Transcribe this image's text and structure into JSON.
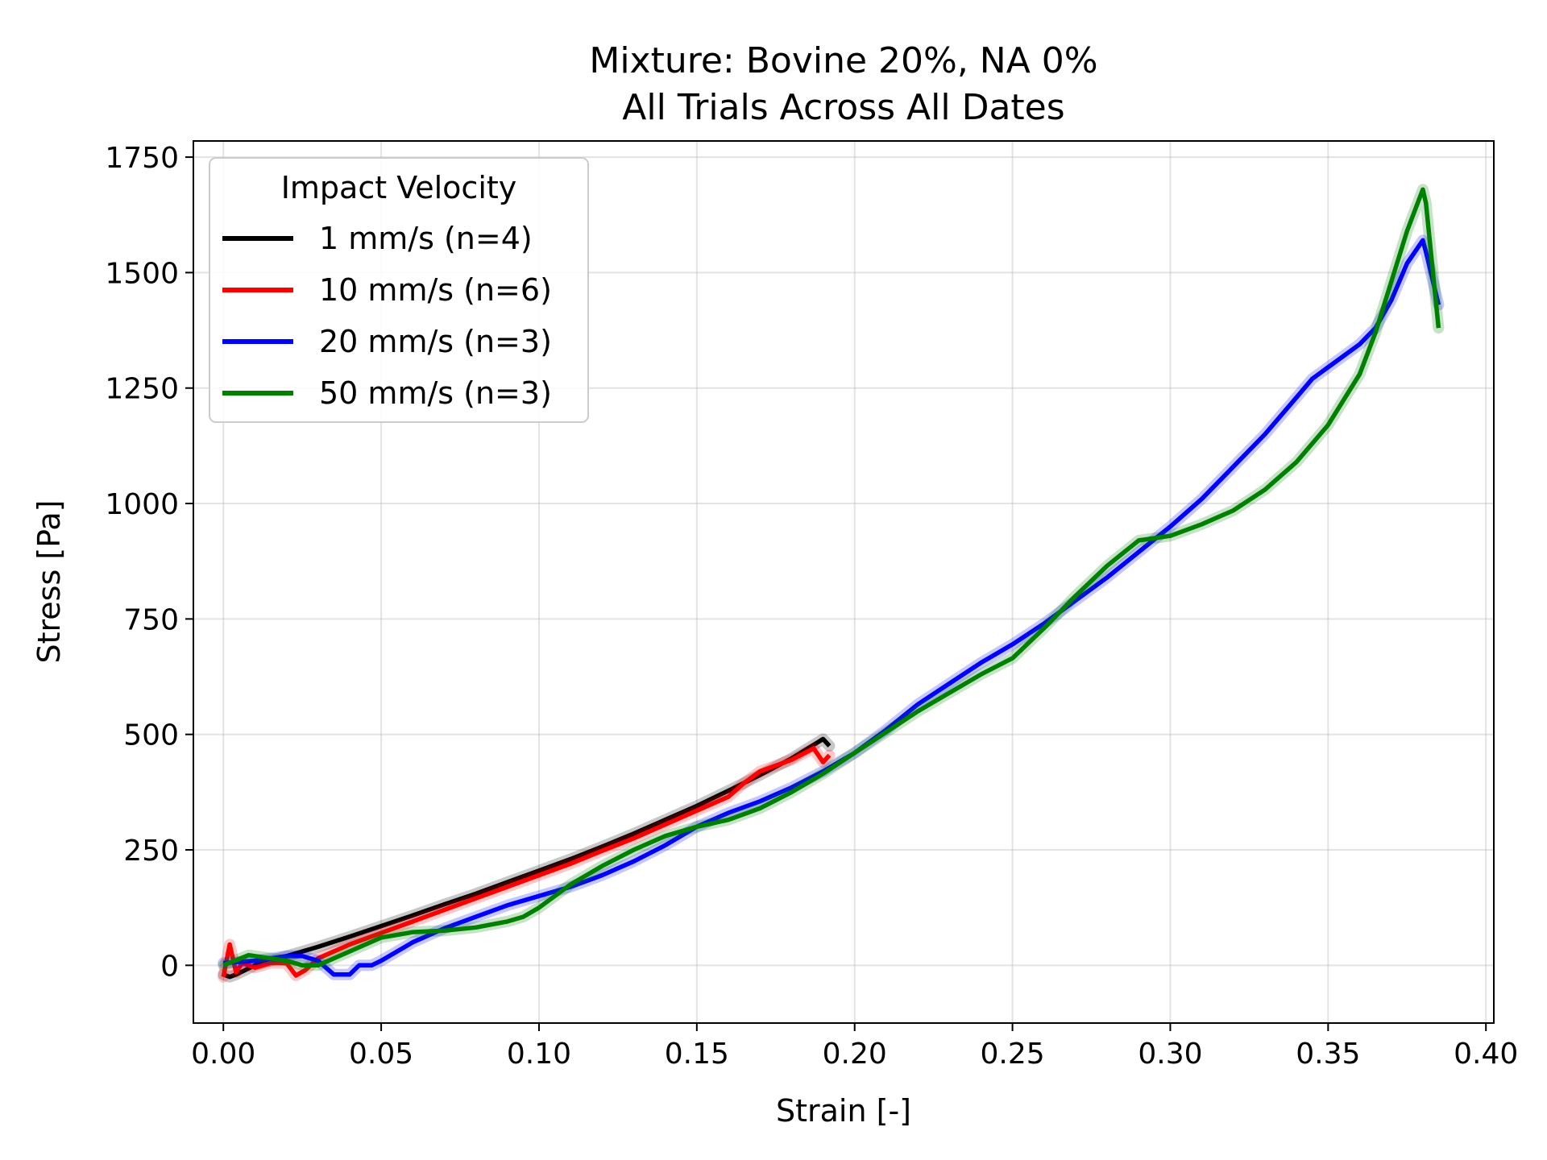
{
  "chart_data": {
    "type": "line",
    "title": "Mixture: Bovine 20%, NA 0%",
    "subtitle": "All Trials Across All Dates",
    "xlabel": "Strain [-]",
    "ylabel": "Stress [Pa]",
    "xlim": [
      -0.0095,
      0.4025
    ],
    "ylim": [
      -125,
      1785
    ],
    "xticks": [
      "0.00",
      "0.05",
      "0.10",
      "0.15",
      "0.20",
      "0.25",
      "0.30",
      "0.35",
      "0.40"
    ],
    "yticks": [
      "0",
      "250",
      "500",
      "750",
      "1000",
      "1250",
      "1500",
      "1750"
    ],
    "grid": true,
    "legend": {
      "title": "Impact Velocity",
      "placement": "top-left",
      "entries": [
        "1 mm/s (n=4)",
        "10 mm/s (n=6)",
        "20 mm/s (n=3)",
        "50 mm/s (n=3)"
      ]
    },
    "series": [
      {
        "name": "1 mm/s (n=4)",
        "color": "#000000",
        "x": [
          0.0,
          0.002,
          0.004,
          0.01,
          0.02,
          0.03,
          0.04,
          0.05,
          0.06,
          0.07,
          0.08,
          0.09,
          0.1,
          0.11,
          0.12,
          0.13,
          0.14,
          0.15,
          0.16,
          0.17,
          0.18,
          0.19,
          0.192
        ],
        "y": [
          -20,
          -25,
          -20,
          0,
          20,
          40,
          62,
          85,
          108,
          132,
          155,
          180,
          205,
          230,
          257,
          285,
          315,
          345,
          378,
          412,
          448,
          490,
          475
        ]
      },
      {
        "name": "10 mm/s (n=6)",
        "color": "#ff0000",
        "x": [
          0.0,
          0.002,
          0.004,
          0.006,
          0.01,
          0.015,
          0.02,
          0.023,
          0.026,
          0.03,
          0.04,
          0.05,
          0.06,
          0.07,
          0.08,
          0.09,
          0.1,
          0.11,
          0.12,
          0.13,
          0.14,
          0.15,
          0.16,
          0.165,
          0.17,
          0.18,
          0.187,
          0.19,
          0.192
        ],
        "y": [
          -25,
          45,
          -15,
          5,
          -5,
          5,
          5,
          -22,
          -10,
          15,
          45,
          70,
          95,
          120,
          145,
          170,
          195,
          220,
          248,
          275,
          305,
          335,
          365,
          395,
          420,
          445,
          470,
          440,
          455
        ]
      },
      {
        "name": "20 mm/s (n=3)",
        "color": "#0000ff",
        "x": [
          0.0,
          0.01,
          0.02,
          0.025,
          0.03,
          0.035,
          0.04,
          0.043,
          0.047,
          0.05,
          0.06,
          0.07,
          0.08,
          0.09,
          0.1,
          0.11,
          0.12,
          0.13,
          0.14,
          0.15,
          0.16,
          0.17,
          0.18,
          0.19,
          0.2,
          0.21,
          0.22,
          0.23,
          0.24,
          0.25,
          0.26,
          0.27,
          0.28,
          0.29,
          0.3,
          0.31,
          0.32,
          0.33,
          0.34,
          0.345,
          0.35,
          0.355,
          0.36,
          0.365,
          0.37,
          0.375,
          0.38,
          0.381,
          0.385
        ],
        "y": [
          5,
          10,
          20,
          20,
          10,
          -20,
          -20,
          0,
          0,
          10,
          50,
          80,
          105,
          130,
          150,
          170,
          195,
          225,
          260,
          300,
          330,
          355,
          385,
          420,
          460,
          510,
          565,
          610,
          655,
          695,
          740,
          790,
          840,
          895,
          950,
          1010,
          1080,
          1150,
          1230,
          1270,
          1295,
          1320,
          1345,
          1380,
          1440,
          1520,
          1570,
          1545,
          1430
        ]
      },
      {
        "name": "50 mm/s (n=3)",
        "color": "#008000",
        "x": [
          0.0,
          0.008,
          0.015,
          0.02,
          0.025,
          0.03,
          0.04,
          0.05,
          0.06,
          0.07,
          0.08,
          0.09,
          0.095,
          0.1,
          0.105,
          0.11,
          0.12,
          0.13,
          0.14,
          0.15,
          0.16,
          0.17,
          0.18,
          0.19,
          0.2,
          0.21,
          0.22,
          0.23,
          0.24,
          0.25,
          0.26,
          0.27,
          0.28,
          0.29,
          0.3,
          0.31,
          0.32,
          0.33,
          0.34,
          0.35,
          0.36,
          0.365,
          0.37,
          0.375,
          0.38,
          0.381,
          0.385
        ],
        "y": [
          0,
          22,
          15,
          10,
          0,
          0,
          30,
          60,
          72,
          75,
          82,
          95,
          105,
          125,
          150,
          175,
          215,
          250,
          280,
          300,
          315,
          340,
          375,
          415,
          460,
          505,
          550,
          590,
          630,
          665,
          730,
          800,
          865,
          920,
          930,
          955,
          985,
          1030,
          1090,
          1170,
          1280,
          1370,
          1480,
          1590,
          1680,
          1650,
          1380
        ]
      }
    ]
  }
}
